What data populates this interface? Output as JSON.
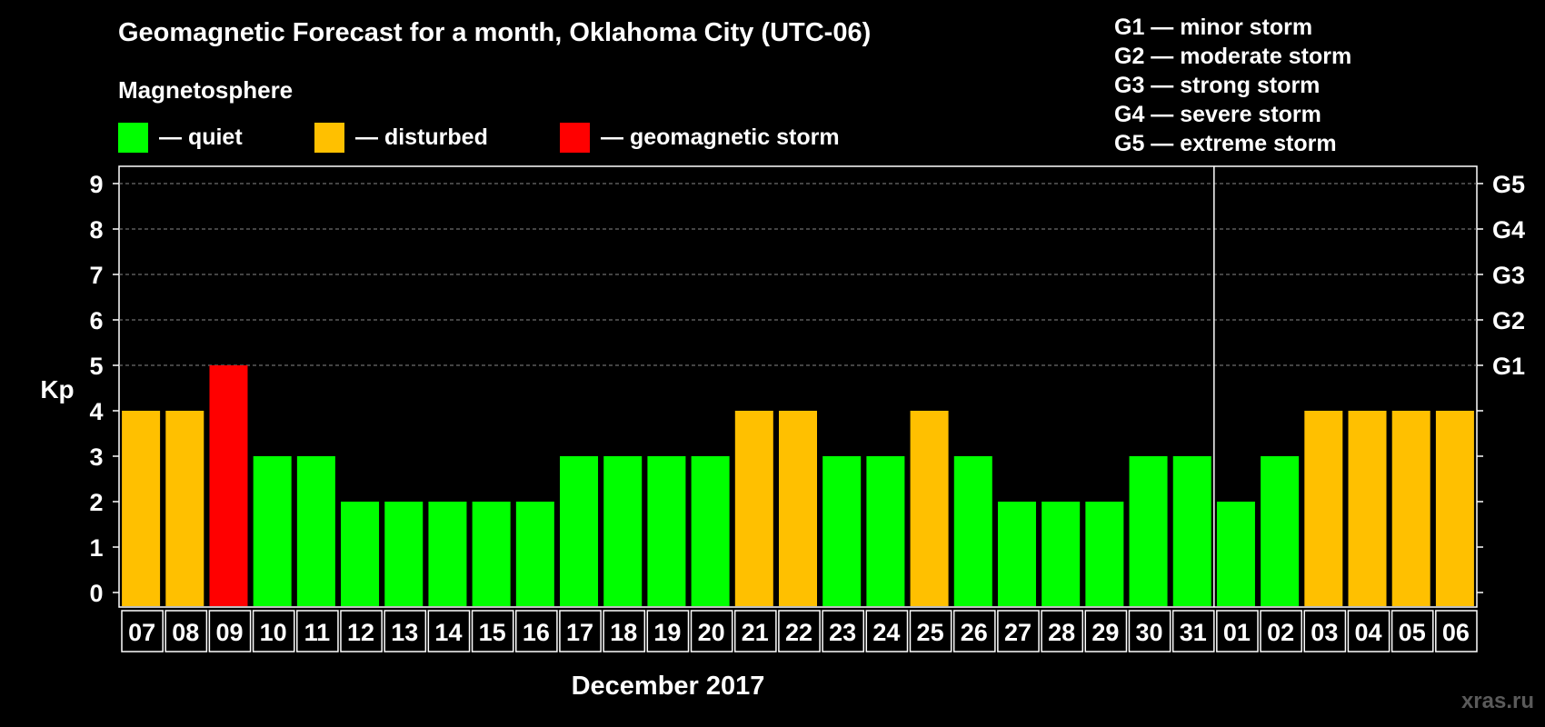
{
  "title": "Geomagnetic Forecast for a month, Oklahoma City (UTC-06)",
  "subtitle": "Magnetosphere",
  "legend": [
    {
      "label": "— quiet",
      "color": "#00ff00"
    },
    {
      "label": "— disturbed",
      "color": "#ffc000"
    },
    {
      "label": "— geomagnetic storm",
      "color": "#ff0000"
    }
  ],
  "g_levels": [
    "G1 — minor storm",
    "G2 — moderate storm",
    "G3 — strong storm",
    "G4 — severe storm",
    "G5 — extreme storm"
  ],
  "watermark": "xras.ru",
  "chart_data": {
    "type": "bar",
    "title": "Geomagnetic Forecast for a month, Oklahoma City (UTC-06)",
    "xlabel": "December 2017",
    "ylabel": "Kp",
    "ylim": [
      0,
      9
    ],
    "y_ticks": [
      0,
      1,
      2,
      3,
      4,
      5,
      6,
      7,
      8,
      9
    ],
    "right_axis_labels": [
      {
        "kp": 5,
        "label": "G1"
      },
      {
        "kp": 6,
        "label": "G2"
      },
      {
        "kp": 7,
        "label": "G3"
      },
      {
        "kp": 8,
        "label": "G4"
      },
      {
        "kp": 9,
        "label": "G5"
      }
    ],
    "grid": "horizontal dashed at Kp 5-9",
    "month_boundary_after": "31",
    "categories": [
      "07",
      "08",
      "09",
      "10",
      "11",
      "12",
      "13",
      "14",
      "15",
      "16",
      "17",
      "18",
      "19",
      "20",
      "21",
      "22",
      "23",
      "24",
      "25",
      "26",
      "27",
      "28",
      "29",
      "30",
      "31",
      "01",
      "02",
      "03",
      "04",
      "05",
      "06"
    ],
    "values": [
      4,
      4,
      5,
      3,
      3,
      2,
      2,
      2,
      2,
      2,
      3,
      3,
      3,
      3,
      4,
      4,
      3,
      3,
      4,
      3,
      2,
      2,
      2,
      3,
      3,
      2,
      3,
      4,
      4,
      4,
      4
    ],
    "colors": {
      "quiet": "#00ff00",
      "disturbed": "#ffc000",
      "storm": "#ff0000"
    }
  }
}
